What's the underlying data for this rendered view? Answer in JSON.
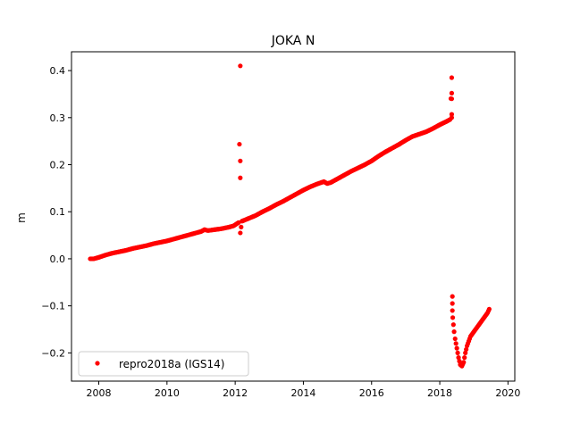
{
  "chart_data": {
    "type": "scatter",
    "title": "JOKA N",
    "xlabel": "",
    "ylabel": "m",
    "xlim": [
      2007.2,
      2020.2
    ],
    "ylim": [
      -0.26,
      0.44
    ],
    "xticks": [
      2008,
      2010,
      2012,
      2014,
      2016,
      2018,
      2020
    ],
    "yticks": [
      -0.2,
      -0.1,
      0.0,
      0.1,
      0.2,
      0.3,
      0.4
    ],
    "xtick_labels": [
      "2008",
      "2010",
      "2012",
      "2014",
      "2016",
      "2018",
      "2020"
    ],
    "ytick_labels": [
      "−0.2",
      "−0.1",
      "0.0",
      "0.1",
      "0.2",
      "0.3",
      "0.4"
    ],
    "grid": false,
    "legend_position": "lower-left",
    "series": [
      {
        "name": "repro2018a (IGS14)",
        "color": "#ff0000",
        "marker": "circle",
        "x": [
          2007.75,
          2007.85,
          2008.0,
          2008.2,
          2008.4,
          2008.6,
          2008.8,
          2009.0,
          2009.2,
          2009.4,
          2009.6,
          2009.8,
          2010.0,
          2010.2,
          2010.4,
          2010.6,
          2010.8,
          2011.0,
          2011.1,
          2011.2,
          2011.4,
          2011.6,
          2011.8,
          2011.95,
          2012.1,
          2012.15,
          2012.15,
          2012.15,
          2012.15,
          2012.2,
          2012.3,
          2012.4,
          2012.6,
          2012.8,
          2013.0,
          2013.2,
          2013.4,
          2013.6,
          2013.8,
          2014.0,
          2014.2,
          2014.4,
          2014.6,
          2014.7,
          2014.8,
          2015.0,
          2015.2,
          2015.4,
          2015.6,
          2015.8,
          2016.0,
          2016.2,
          2016.4,
          2016.6,
          2016.8,
          2017.0,
          2017.2,
          2017.4,
          2017.6,
          2017.8,
          2018.0,
          2018.2,
          2018.3,
          2018.35,
          2018.35,
          2018.35,
          2018.35,
          2018.35,
          2018.37,
          2018.37,
          2018.37,
          2018.38,
          2018.4,
          2018.42,
          2018.45,
          2018.5,
          2018.55,
          2018.6,
          2018.65,
          2018.7,
          2018.75,
          2018.8,
          2018.85,
          2018.9,
          2019.0,
          2019.1,
          2019.2,
          2019.3,
          2019.4,
          2019.45
        ],
        "y": [
          0.0,
          0.0,
          0.003,
          0.008,
          0.012,
          0.015,
          0.018,
          0.022,
          0.025,
          0.028,
          0.032,
          0.035,
          0.038,
          0.042,
          0.046,
          0.05,
          0.054,
          0.058,
          0.062,
          0.06,
          0.062,
          0.064,
          0.067,
          0.07,
          0.077,
          0.41,
          0.208,
          0.172,
          0.055,
          0.08,
          0.083,
          0.086,
          0.092,
          0.1,
          0.107,
          0.115,
          0.122,
          0.13,
          0.138,
          0.146,
          0.153,
          0.159,
          0.164,
          0.16,
          0.162,
          0.17,
          0.178,
          0.186,
          0.193,
          0.2,
          0.208,
          0.218,
          0.227,
          0.235,
          0.243,
          0.252,
          0.26,
          0.265,
          0.27,
          0.277,
          0.285,
          0.292,
          0.296,
          0.385,
          0.352,
          0.34,
          0.307,
          0.3,
          -0.08,
          -0.095,
          -0.11,
          -0.125,
          -0.14,
          -0.155,
          -0.17,
          -0.19,
          -0.21,
          -0.225,
          -0.228,
          -0.22,
          -0.2,
          -0.185,
          -0.175,
          -0.165,
          -0.155,
          -0.145,
          -0.135,
          -0.125,
          -0.115,
          -0.107
        ]
      }
    ]
  }
}
